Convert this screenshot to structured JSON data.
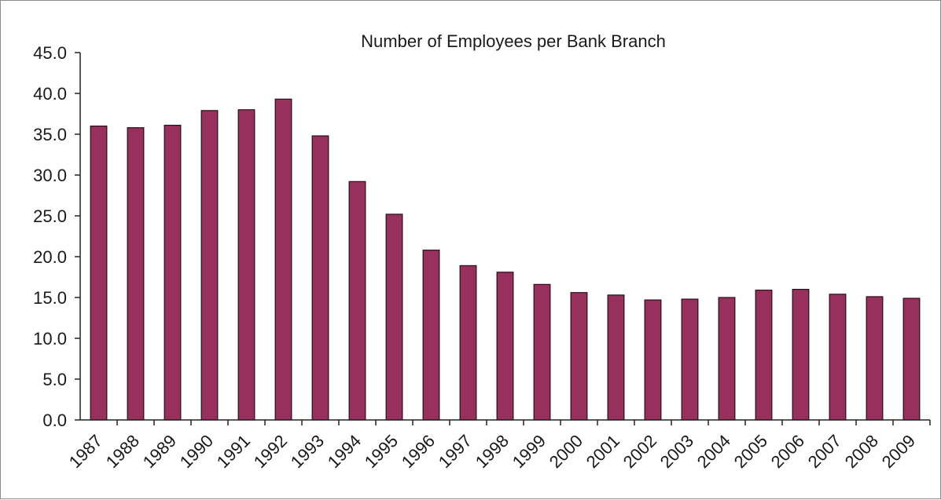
{
  "chart_data": {
    "type": "bar",
    "title": "Number of Employees per Bank Branch",
    "xlabel": "",
    "ylabel": "",
    "categories": [
      "1987",
      "1988",
      "1989",
      "1990",
      "1991",
      "1992",
      "1993",
      "1994",
      "1995",
      "1996",
      "1997",
      "1998",
      "1999",
      "2000",
      "2001",
      "2002",
      "2003",
      "2004",
      "2005",
      "2006",
      "2007",
      "2008",
      "2009"
    ],
    "values": [
      36.0,
      35.8,
      36.1,
      37.9,
      38.0,
      39.3,
      34.8,
      29.2,
      25.2,
      20.8,
      18.9,
      18.1,
      16.6,
      15.6,
      15.3,
      14.7,
      14.8,
      15.0,
      15.9,
      16.0,
      15.4,
      15.1,
      14.9
    ],
    "yticks": [
      "0.0",
      "5.0",
      "10.0",
      "15.0",
      "20.0",
      "25.0",
      "30.0",
      "35.0",
      "40.0",
      "45.0"
    ],
    "ylim": [
      0,
      45
    ],
    "grid": false,
    "legend": "none",
    "bar_color": "#98305e"
  }
}
